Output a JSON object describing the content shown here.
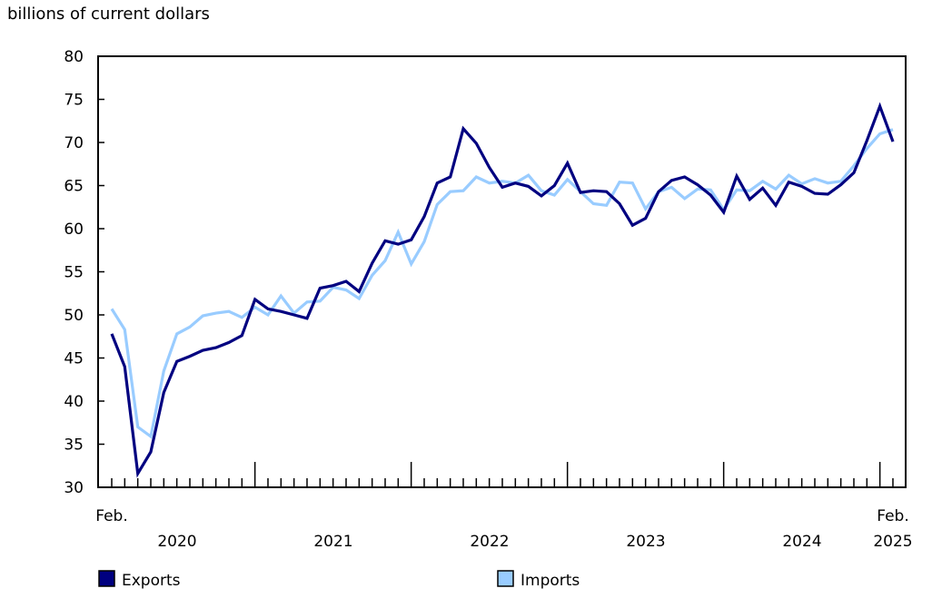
{
  "chart_data": {
    "type": "line",
    "ylabel": "billions of current dollars",
    "ylim": [
      30,
      80
    ],
    "yticks": [
      30,
      35,
      40,
      45,
      50,
      55,
      60,
      65,
      70,
      75,
      80
    ],
    "x_start_label": "Feb.",
    "x_end_label": "Feb.",
    "year_labels": [
      "2020",
      "2021",
      "2022",
      "2023",
      "2024",
      "2025"
    ],
    "x_range": [
      "2020-02",
      "2025-02"
    ],
    "grid": false,
    "legend_position": "bottom",
    "series": [
      {
        "name": "Exports",
        "color": "#000080",
        "values": [
          47.8,
          44.0,
          31.6,
          34.1,
          41.0,
          44.6,
          45.2,
          45.9,
          46.2,
          46.8,
          47.6,
          51.8,
          50.7,
          50.4,
          50.0,
          49.6,
          53.1,
          53.4,
          53.9,
          52.7,
          56.0,
          58.6,
          58.2,
          58.7,
          61.4,
          65.3,
          66.0,
          71.6,
          69.9,
          67.1,
          64.8,
          65.3,
          64.9,
          63.8,
          65.0,
          67.6,
          64.2,
          64.4,
          64.3,
          62.9,
          60.4,
          61.2,
          64.3,
          65.6,
          66.0,
          65.1,
          63.9,
          61.9,
          66.1,
          63.4,
          64.7,
          62.7,
          65.4,
          64.9,
          64.1,
          64.0,
          65.1,
          66.5,
          70.2,
          74.2,
          70.1
        ]
      },
      {
        "name": "Imports",
        "color": "#99CCFF",
        "values": [
          50.7,
          48.3,
          37.0,
          35.9,
          43.5,
          47.8,
          48.6,
          49.9,
          50.2,
          50.4,
          49.7,
          50.9,
          50.0,
          52.2,
          50.2,
          51.5,
          51.6,
          53.2,
          52.9,
          51.9,
          54.6,
          56.3,
          59.6,
          55.9,
          58.5,
          62.8,
          64.3,
          64.4,
          66.0,
          65.3,
          65.5,
          65.3,
          66.2,
          64.4,
          63.9,
          65.7,
          64.3,
          62.9,
          62.7,
          65.4,
          65.3,
          62.3,
          64.3,
          64.8,
          63.5,
          64.6,
          64.5,
          62.2,
          64.5,
          64.4,
          65.5,
          64.6,
          66.2,
          65.2,
          65.8,
          65.3,
          65.5,
          67.3,
          69.3,
          71.0,
          71.5
        ]
      }
    ]
  }
}
